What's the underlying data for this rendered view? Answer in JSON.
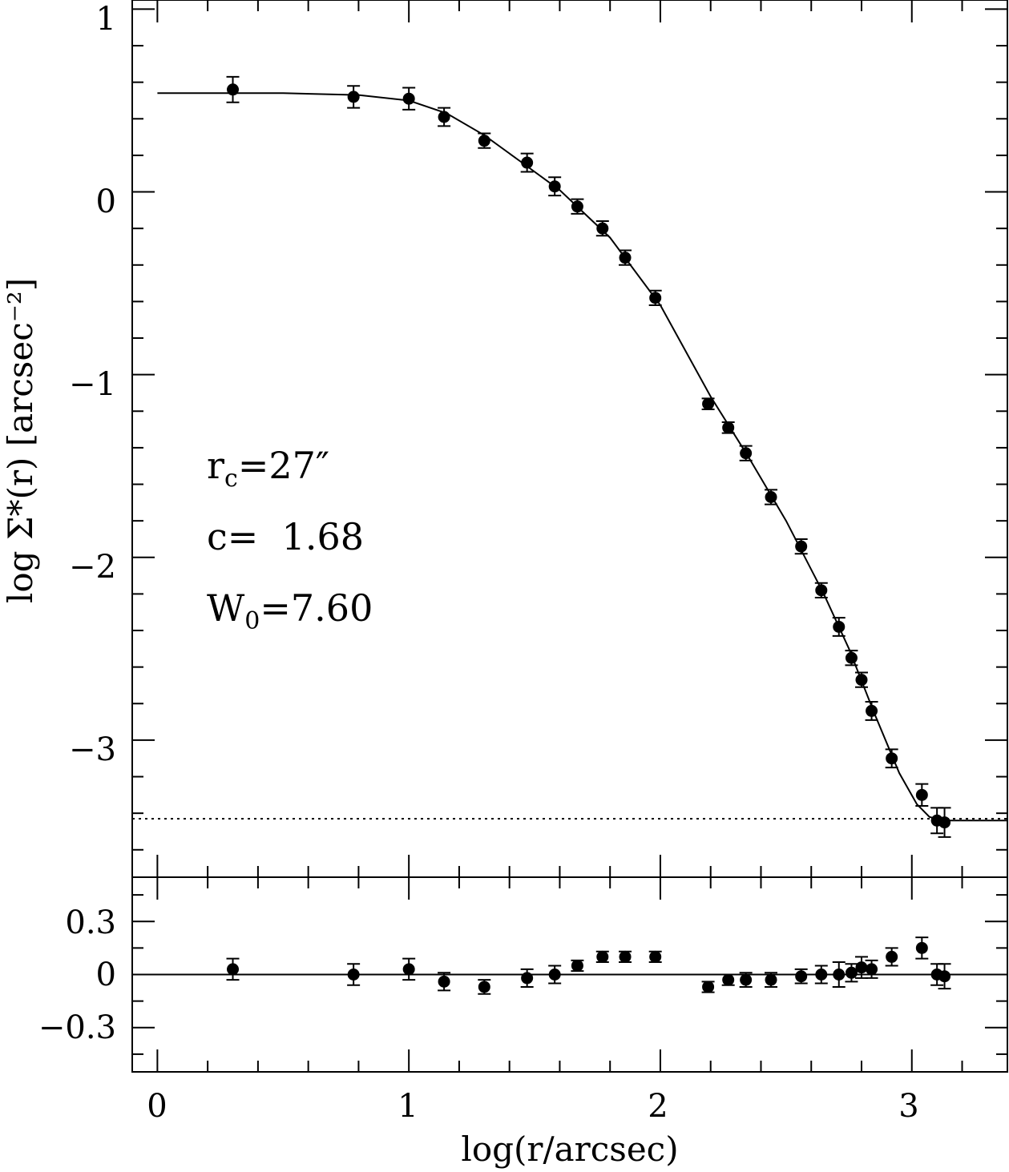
{
  "chart_data": [
    {
      "type": "scatter",
      "title": "",
      "xlabel": "log(r/arcsec)",
      "ylabel": "log Σ*(r) [arcsec⁻²]",
      "xlim": [
        -0.1,
        3.38
      ],
      "ylim": [
        -3.75,
        1.05
      ],
      "x_ticks": [
        "0",
        "1",
        "2",
        "3"
      ],
      "y_ticks": [
        "1",
        "0",
        "−1",
        "−2",
        "−3"
      ],
      "y_tick_values": [
        1,
        0,
        -1,
        -2,
        -3
      ],
      "annotations": {
        "rc_label": "r",
        "rc_sub": "c",
        "rc_value": "=27″",
        "c_text": "c=  1.68",
        "w_label": "W",
        "w_sub": "0",
        "w_value": "=7.60"
      },
      "background_level": -3.43,
      "series": [
        {
          "values": [
            {
              "x": 0.3,
              "y": 0.56,
              "err": 0.07
            },
            {
              "x": 0.78,
              "y": 0.52,
              "err": 0.06
            },
            {
              "x": 1.0,
              "y": 0.51,
              "err": 0.06
            },
            {
              "x": 1.14,
              "y": 0.41,
              "err": 0.05
            },
            {
              "x": 1.3,
              "y": 0.28,
              "err": 0.04
            },
            {
              "x": 1.47,
              "y": 0.16,
              "err": 0.05
            },
            {
              "x": 1.58,
              "y": 0.03,
              "err": 0.05
            },
            {
              "x": 1.67,
              "y": -0.08,
              "err": 0.04
            },
            {
              "x": 1.77,
              "y": -0.2,
              "err": 0.04
            },
            {
              "x": 1.86,
              "y": -0.36,
              "err": 0.04
            },
            {
              "x": 1.98,
              "y": -0.58,
              "err": 0.04
            },
            {
              "x": 2.19,
              "y": -1.16,
              "err": 0.03
            },
            {
              "x": 2.27,
              "y": -1.29,
              "err": 0.03
            },
            {
              "x": 2.34,
              "y": -1.43,
              "err": 0.04
            },
            {
              "x": 2.44,
              "y": -1.67,
              "err": 0.04
            },
            {
              "x": 2.56,
              "y": -1.94,
              "err": 0.04
            },
            {
              "x": 2.64,
              "y": -2.18,
              "err": 0.04
            },
            {
              "x": 2.71,
              "y": -2.38,
              "err": 0.05
            },
            {
              "x": 2.76,
              "y": -2.55,
              "err": 0.04
            },
            {
              "x": 2.8,
              "y": -2.67,
              "err": 0.04
            },
            {
              "x": 2.84,
              "y": -2.84,
              "err": 0.05
            },
            {
              "x": 2.92,
              "y": -3.1,
              "err": 0.05
            },
            {
              "x": 3.04,
              "y": -3.3,
              "err": 0.06
            },
            {
              "x": 3.1,
              "y": -3.44,
              "err": 0.07
            },
            {
              "x": 3.13,
              "y": -3.45,
              "err": 0.08
            }
          ]
        },
        {
          "values": [
            {
              "x": 0.0,
              "y": 0.54
            },
            {
              "x": 0.5,
              "y": 0.54
            },
            {
              "x": 0.8,
              "y": 0.53
            },
            {
              "x": 1.0,
              "y": 0.5
            },
            {
              "x": 1.15,
              "y": 0.43
            },
            {
              "x": 1.3,
              "y": 0.31
            },
            {
              "x": 1.45,
              "y": 0.16
            },
            {
              "x": 1.6,
              "y": 0.01
            },
            {
              "x": 1.8,
              "y": -0.25
            },
            {
              "x": 2.0,
              "y": -0.62
            },
            {
              "x": 2.2,
              "y": -1.12
            },
            {
              "x": 2.35,
              "y": -1.45
            },
            {
              "x": 2.5,
              "y": -1.8
            },
            {
              "x": 2.65,
              "y": -2.2
            },
            {
              "x": 2.75,
              "y": -2.5
            },
            {
              "x": 2.85,
              "y": -2.85
            },
            {
              "x": 2.95,
              "y": -3.18
            },
            {
              "x": 3.02,
              "y": -3.35
            },
            {
              "x": 3.07,
              "y": -3.42
            },
            {
              "x": 3.12,
              "y": -3.44
            },
            {
              "x": 3.38,
              "y": -3.44
            }
          ]
        }
      ]
    },
    {
      "type": "scatter",
      "title": "",
      "xlabel": "log(r/arcsec)",
      "ylabel": "",
      "xlim": [
        -0.1,
        3.38
      ],
      "ylim": [
        -0.55,
        0.55
      ],
      "y_ticks": [
        "0.3",
        "0",
        "−0.3"
      ],
      "y_tick_values": [
        0.3,
        0,
        -0.3
      ],
      "series": [
        {
          "values": [
            {
              "x": 0.3,
              "y": 0.03,
              "err": 0.06
            },
            {
              "x": 0.78,
              "y": 0.0,
              "err": 0.06
            },
            {
              "x": 1.0,
              "y": 0.03,
              "err": 0.06
            },
            {
              "x": 1.14,
              "y": -0.04,
              "err": 0.05
            },
            {
              "x": 1.3,
              "y": -0.07,
              "err": 0.04
            },
            {
              "x": 1.47,
              "y": -0.02,
              "err": 0.05
            },
            {
              "x": 1.58,
              "y": 0.0,
              "err": 0.05
            },
            {
              "x": 1.67,
              "y": 0.05,
              "err": 0.03
            },
            {
              "x": 1.77,
              "y": 0.1,
              "err": 0.03
            },
            {
              "x": 1.86,
              "y": 0.1,
              "err": 0.03
            },
            {
              "x": 1.98,
              "y": 0.1,
              "err": 0.03
            },
            {
              "x": 2.19,
              "y": -0.07,
              "err": 0.03
            },
            {
              "x": 2.27,
              "y": -0.03,
              "err": 0.03
            },
            {
              "x": 2.34,
              "y": -0.03,
              "err": 0.04
            },
            {
              "x": 2.44,
              "y": -0.03,
              "err": 0.04
            },
            {
              "x": 2.56,
              "y": -0.01,
              "err": 0.04
            },
            {
              "x": 2.64,
              "y": 0.0,
              "err": 0.05
            },
            {
              "x": 2.71,
              "y": 0.0,
              "err": 0.07
            },
            {
              "x": 2.76,
              "y": 0.01,
              "err": 0.05
            },
            {
              "x": 2.8,
              "y": 0.04,
              "err": 0.06
            },
            {
              "x": 2.84,
              "y": 0.03,
              "err": 0.05
            },
            {
              "x": 2.92,
              "y": 0.1,
              "err": 0.05
            },
            {
              "x": 3.04,
              "y": 0.15,
              "err": 0.06
            },
            {
              "x": 3.1,
              "y": 0.0,
              "err": 0.06
            },
            {
              "x": 3.13,
              "y": -0.01,
              "err": 0.07
            }
          ]
        }
      ]
    }
  ]
}
